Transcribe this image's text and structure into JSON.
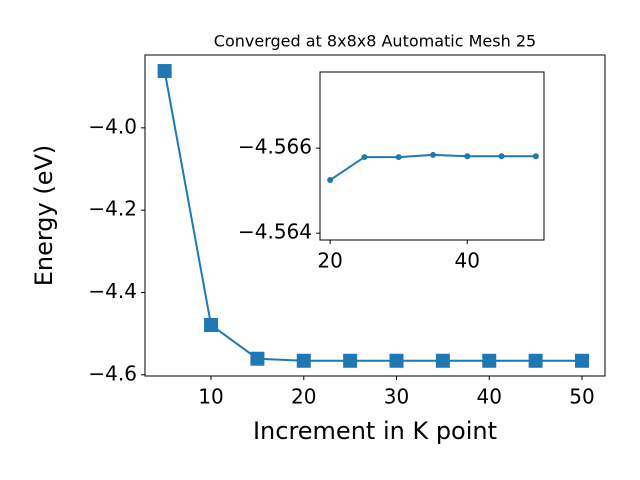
{
  "chart_data": [
    {
      "type": "line",
      "title": "Converged at 8x8x8 Automatic Mesh 25",
      "x_label": "Increment in K point",
      "y_label": "Energy (eV)",
      "x": [
        5,
        10,
        15,
        20,
        25,
        30,
        35,
        40,
        45,
        50
      ],
      "values": [
        -3.862,
        -4.479,
        -4.561,
        -4.566,
        -4.566,
        -4.566,
        -4.566,
        -4.566,
        -4.566,
        -4.566
      ],
      "color": "#1f77b4",
      "marker": "square",
      "xlim": [
        2.88,
        52.48
      ],
      "ylim": [
        -4.603,
        -3.823
      ],
      "xticks": [
        10,
        20,
        30,
        40,
        50
      ],
      "yticks": [
        {
          "value": -4.0,
          "label": "−4.0"
        },
        {
          "value": -4.2,
          "label": "−4.2"
        },
        {
          "value": -4.4,
          "label": "−4.4"
        },
        {
          "value": -4.6,
          "label": "−4.6"
        }
      ]
    },
    {
      "type": "line",
      "x": [
        20,
        25,
        30,
        35,
        40,
        45,
        50
      ],
      "values": [
        -4.56525,
        -4.56579,
        -4.56579,
        -4.56584,
        -4.56581,
        -4.56581,
        -4.56581
      ],
      "color": "#1f77b4",
      "marker": "circle",
      "xlim": [
        18.52,
        51.19
      ],
      "ylim": [
        -4.56384,
        -4.56779
      ],
      "xticks": [
        20,
        40
      ],
      "yticks": [
        {
          "value": -4.566,
          "label": "−4.566"
        },
        {
          "value": -4.564,
          "label": "−4.564"
        }
      ]
    }
  ]
}
